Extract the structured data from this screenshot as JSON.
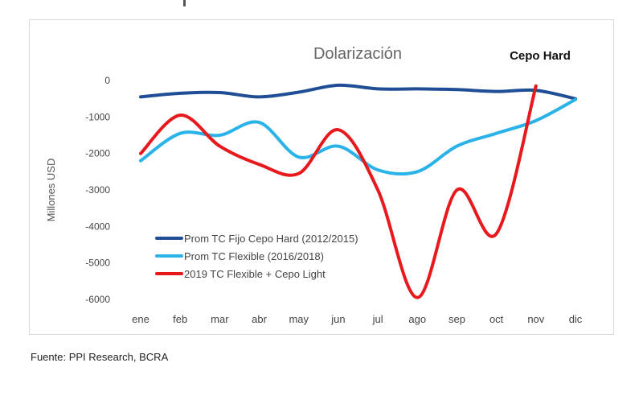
{
  "chart_data": {
    "type": "line",
    "title": "Dolarización",
    "annotation": "Cepo Hard",
    "xlabel": "",
    "ylabel": "Millones USD",
    "ylim": [
      -6000,
      0
    ],
    "yticks": [
      0,
      -1000,
      -2000,
      -3000,
      -4000,
      -5000,
      -6000
    ],
    "ytick_labels": [
      "0",
      "-1000",
      "-2000",
      "-3000",
      "-4000",
      "-5000",
      "-6000"
    ],
    "categories": [
      "ene",
      "feb",
      "mar",
      "abr",
      "may",
      "jun",
      "jul",
      "ago",
      "sep",
      "oct",
      "nov",
      "dic"
    ],
    "legend_position": "bottom-left",
    "series": [
      {
        "name": "Prom TC Fijo Cepo Hard (2012/2015)",
        "color": "#1f4e96",
        "values": [
          -450,
          -350,
          -330,
          -450,
          -320,
          -130,
          -230,
          -230,
          -250,
          -300,
          -270,
          -500
        ]
      },
      {
        "name": "Prom TC Flexible (2016/2018)",
        "color": "#29b3e8",
        "values": [
          -2200,
          -1450,
          -1500,
          -1150,
          -2100,
          -1800,
          -2450,
          -2500,
          -1800,
          -1450,
          -1100,
          -520
        ]
      },
      {
        "name": "2019 TC Flexible + Cepo Light",
        "color": "#e8191c",
        "values": [
          -2000,
          -950,
          -1800,
          -2300,
          -2550,
          -1350,
          -3000,
          -5950,
          -3000,
          -4200,
          -150,
          null
        ]
      }
    ]
  },
  "footer": {
    "source": "Fuente: PPI Research, BCRA"
  }
}
